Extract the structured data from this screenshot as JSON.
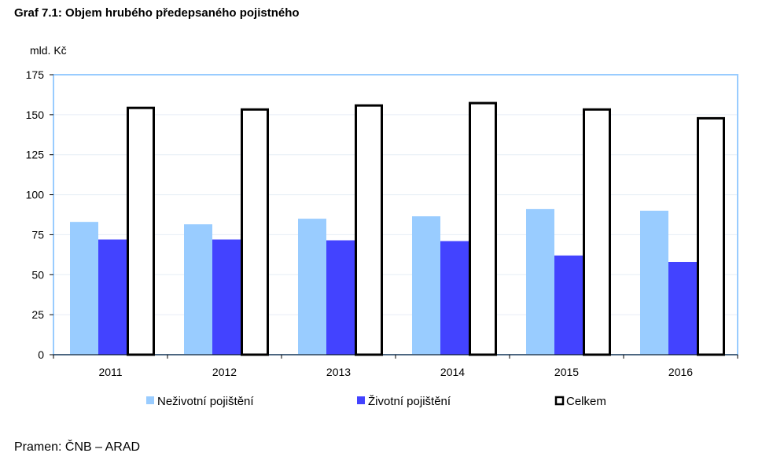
{
  "title": "Graf 7.1: Objem hrubého předepsaného pojistného",
  "source": "Pramen: ČNB – ARAD",
  "chart_data": {
    "type": "bar",
    "title": "Graf 7.1: Objem hrubého předepsaného pojistného",
    "ylabel": "mld. Kč",
    "xlabel": "",
    "ylim": [
      0,
      175
    ],
    "yticks": [
      0,
      25,
      50,
      75,
      100,
      125,
      150,
      175
    ],
    "categories": [
      "2011",
      "2012",
      "2013",
      "2014",
      "2015",
      "2016"
    ],
    "series": [
      {
        "name": "Neživotní pojištění",
        "values": [
          83,
          81.5,
          85,
          86.5,
          91,
          90
        ],
        "color": "#99ccff"
      },
      {
        "name": "Životní pojištění",
        "values": [
          72,
          72,
          71.5,
          71,
          62,
          58
        ],
        "color": "#4343ff"
      },
      {
        "name": "Celkem",
        "values": [
          155,
          154,
          156.5,
          158,
          154,
          148.5
        ],
        "color": "#ffffff",
        "stroke": "#000000"
      }
    ],
    "grid": true,
    "legend_position": "bottom"
  }
}
